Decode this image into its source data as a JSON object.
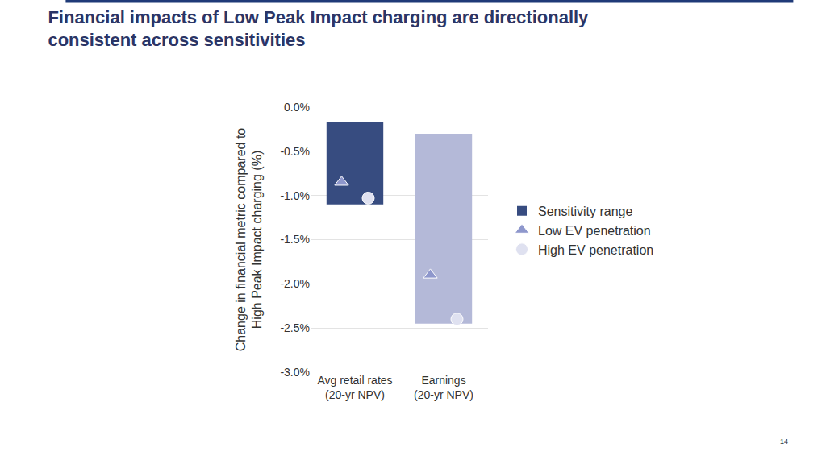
{
  "chart_data": {
    "type": "floating_bar",
    "title": "Financial impacts of Low Peak Impact charging are directionally\nconsistent across sensitivities",
    "y_label": "Change in financial metric compared to\nHigh Peak Impact charging (%)",
    "categories": [
      "Avg retail rates\n(20-yr NPV)",
      "Earnings\n(20-yr NPV)"
    ],
    "series": [
      {
        "name": "Sensitivity range",
        "type": "range_bar",
        "colors": [
          "#374c80",
          "#b4b9d8"
        ],
        "values": [
          [
            -0.17,
            -1.1
          ],
          [
            -0.3,
            -2.45
          ]
        ]
      },
      {
        "name": "Low EV penetration",
        "type": "scatter",
        "marker": "triangle-up",
        "color": "#8e97cc",
        "values": [
          -0.85,
          -1.9
        ]
      },
      {
        "name": "High EV penetration",
        "type": "scatter",
        "marker": "circle",
        "color": "#dfe1f0",
        "values": [
          -1.03,
          -2.4
        ]
      }
    ],
    "ylim": [
      -3.0,
      0.0
    ],
    "yticks": [
      {
        "value": 0.0,
        "label": "0.0%"
      },
      {
        "value": -0.5,
        "label": "-0.5%"
      },
      {
        "value": -1.0,
        "label": "-1.0%"
      },
      {
        "value": -1.5,
        "label": "-1.5%"
      },
      {
        "value": -2.0,
        "label": "-2.0%"
      },
      {
        "value": -2.5,
        "label": "-2.5%"
      },
      {
        "value": -3.0,
        "label": "-3.0%"
      }
    ],
    "grid": true,
    "legend": "right",
    "annotations": [
      {
        "text": "14"
      }
    ]
  }
}
